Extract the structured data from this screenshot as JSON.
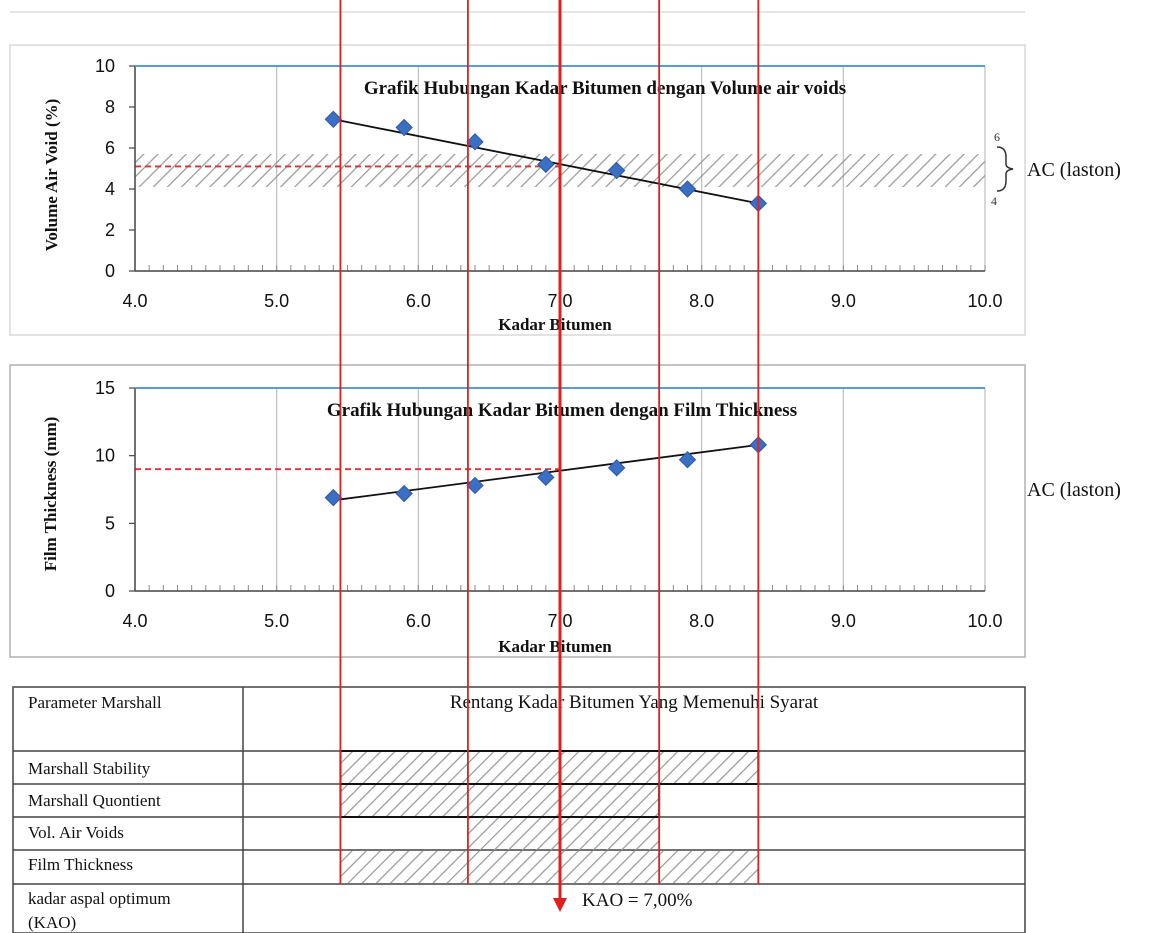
{
  "chart_data": [
    {
      "type": "scatter",
      "title": "Grafik Hubungan Kadar Bitumen dengan Volume air voids",
      "xlabel": "Kadar Bitumen",
      "ylabel": "Volume Air Void (%)",
      "xlim": [
        4.0,
        10.0
      ],
      "ylim": [
        0,
        10
      ],
      "x_ticks": [
        "4.0",
        "5.0",
        "6.0",
        "7.0",
        "8.0",
        "9.0",
        "10.0"
      ],
      "y_ticks": [
        "0",
        "2",
        "4",
        "6",
        "8",
        "10"
      ],
      "x": [
        5.4,
        5.9,
        6.4,
        6.9,
        7.4,
        7.9,
        8.4
      ],
      "y": [
        7.4,
        7.0,
        6.3,
        5.2,
        4.9,
        4.0,
        3.3
      ],
      "trendline": {
        "x": [
          5.4,
          8.4
        ],
        "y": [
          7.4,
          3.3
        ]
      },
      "spec_band": {
        "min": 4,
        "max": 6,
        "min_label": "4",
        "max_label": "6",
        "label": "AC (laston)"
      },
      "reference_value": 5.1,
      "colors": {
        "points": "#3a6fc4",
        "band": "#9a9a9a",
        "reference": "#e03030"
      }
    },
    {
      "type": "scatter",
      "title": "Grafik Hubungan Kadar Bitumen dengan Film Thickness",
      "xlabel": "Kadar Bitumen",
      "ylabel": "Film Thickness (mm)",
      "xlim": [
        4.0,
        10.0
      ],
      "ylim": [
        0,
        15
      ],
      "x_ticks": [
        "4.0",
        "5.0",
        "6.0",
        "7.0",
        "8.0",
        "9.0",
        "10.0"
      ],
      "y_ticks": [
        "0",
        "5",
        "10",
        "15"
      ],
      "x": [
        5.4,
        5.9,
        6.4,
        6.9,
        7.4,
        7.9,
        8.4
      ],
      "y": [
        6.9,
        7.2,
        7.8,
        8.4,
        9.1,
        9.7,
        10.8
      ],
      "trendline": {
        "x": [
          5.4,
          8.4
        ],
        "y": [
          6.7,
          10.8
        ]
      },
      "spec_label": "AC (laston)",
      "reference_value": 9.0,
      "colors": {
        "points": "#3a6fc4",
        "reference": "#e03030"
      }
    },
    {
      "type": "table",
      "header": [
        "Parameter Marshall",
        "Rentang Kadar Bitumen Yang Memenuhi Syarat"
      ],
      "rows": [
        {
          "label": "Marshall Stability",
          "from": 5.45,
          "to": 8.4
        },
        {
          "label": "Marshall Quontient",
          "from": 5.45,
          "to": 7.7
        },
        {
          "label": "Vol. Air Voids",
          "from": 6.35,
          "to": 7.7
        },
        {
          "label": "Film Thickness",
          "from": 5.45,
          "to": 8.4
        }
      ],
      "kao_row_label": "kadar aspal optimum (KAO)",
      "kao_label_lines": [
        "kadar aspal optimum",
        "(KAO)"
      ],
      "kao_text": "KAO = 7,00%",
      "kao_value": 7.0,
      "guide_lines": [
        5.45,
        6.35,
        7.0,
        7.7,
        8.4
      ],
      "colors": {
        "guide": "#e02020"
      }
    }
  ]
}
